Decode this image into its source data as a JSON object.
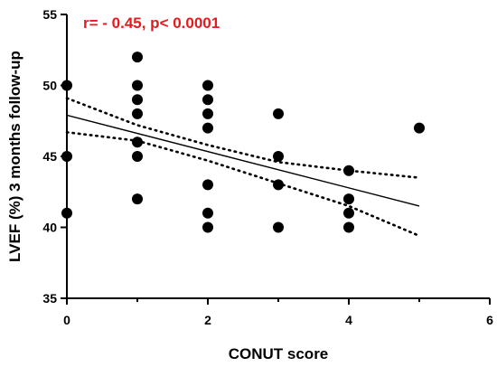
{
  "chart_data": {
    "type": "scatter",
    "title": "",
    "xlabel": "CONUT score",
    "ylabel": "LVEF (%) 3 months follow-up",
    "xlim": [
      0,
      6
    ],
    "ylim": [
      35,
      55
    ],
    "xticks": [
      "0",
      "2",
      "4",
      "6"
    ],
    "yticks": [
      "35",
      "40",
      "45",
      "50",
      "55"
    ],
    "annotation": "r= - 0.45, p< 0.0001",
    "annotation_color": "#e8191c",
    "grid": false,
    "points": [
      {
        "x": 0,
        "y": 50
      },
      {
        "x": 0,
        "y": 45
      },
      {
        "x": 0,
        "y": 41
      },
      {
        "x": 1,
        "y": 52
      },
      {
        "x": 1,
        "y": 50
      },
      {
        "x": 1,
        "y": 49
      },
      {
        "x": 1,
        "y": 48
      },
      {
        "x": 1,
        "y": 46
      },
      {
        "x": 1,
        "y": 45
      },
      {
        "x": 1,
        "y": 42
      },
      {
        "x": 2,
        "y": 50
      },
      {
        "x": 2,
        "y": 49
      },
      {
        "x": 2,
        "y": 48
      },
      {
        "x": 2,
        "y": 47
      },
      {
        "x": 2,
        "y": 43
      },
      {
        "x": 2,
        "y": 41
      },
      {
        "x": 2,
        "y": 40
      },
      {
        "x": 3,
        "y": 48
      },
      {
        "x": 3,
        "y": 45
      },
      {
        "x": 3,
        "y": 43
      },
      {
        "x": 3,
        "y": 40
      },
      {
        "x": 4,
        "y": 44
      },
      {
        "x": 4,
        "y": 42
      },
      {
        "x": 4,
        "y": 41
      },
      {
        "x": 4,
        "y": 40
      },
      {
        "x": 5,
        "y": 47
      }
    ],
    "regression_line": {
      "x": [
        0,
        5
      ],
      "y": [
        47.9,
        41.5
      ]
    },
    "confidence_band": {
      "upper": {
        "x": [
          0,
          1,
          2,
          3,
          4,
          5
        ],
        "y": [
          49.1,
          47.2,
          45.8,
          44.6,
          44.0,
          43.5
        ]
      },
      "lower": {
        "x": [
          0,
          1,
          2,
          3,
          4,
          5
        ],
        "y": [
          46.7,
          46.1,
          44.7,
          43.1,
          41.5,
          39.4
        ]
      }
    }
  }
}
